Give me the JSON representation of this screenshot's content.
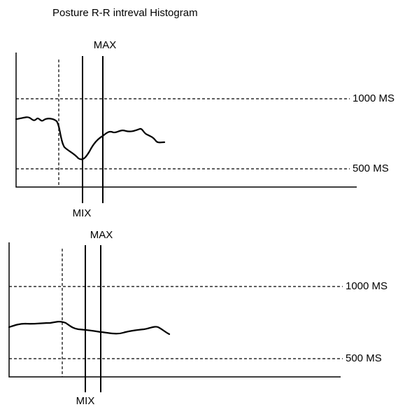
{
  "header": {
    "title": "Posture R-R intreval Histogram"
  },
  "panels": [
    {
      "max_label": "MAX",
      "min_label": "MIX",
      "upper_ref_label": "1000 MS",
      "lower_ref_label": "500 MS"
    },
    {
      "max_label": "MAX",
      "min_label": "MIX",
      "upper_ref_label": "1000 MS",
      "lower_ref_label": "500 MS"
    }
  ]
}
